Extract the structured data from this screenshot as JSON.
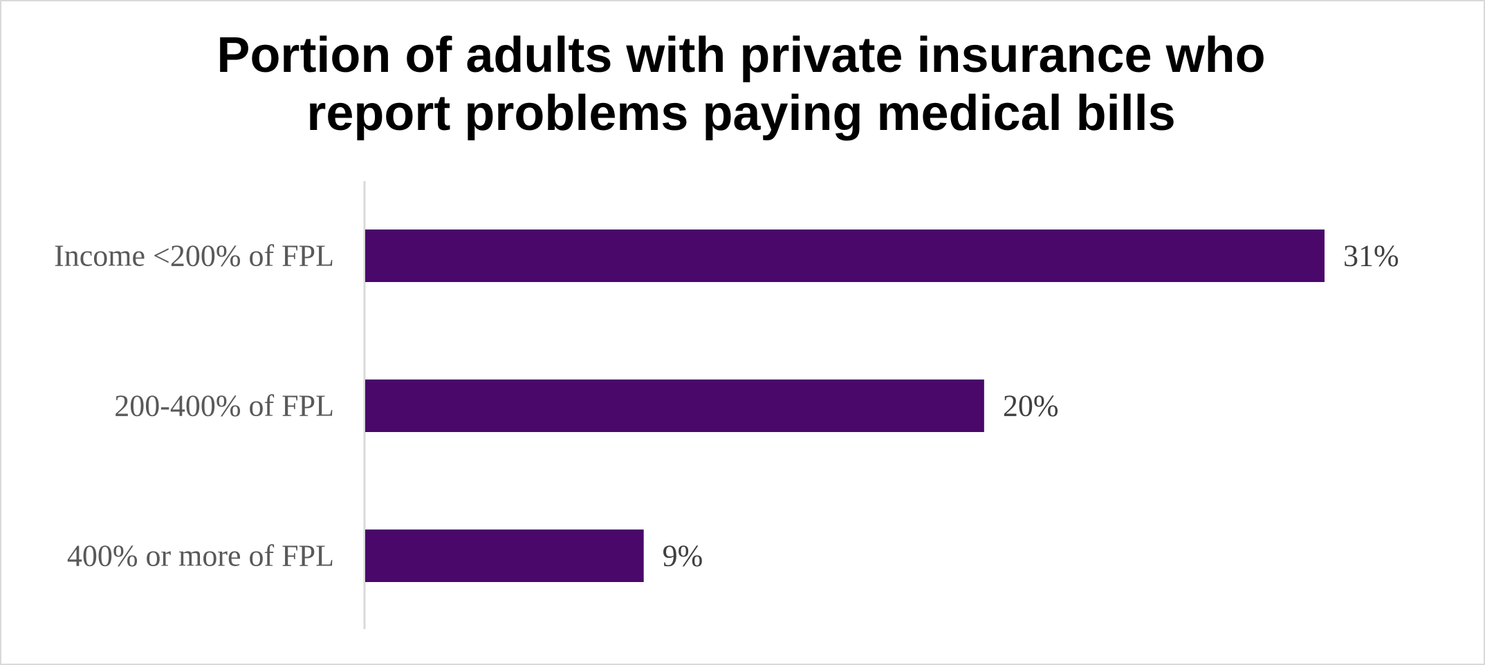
{
  "chart_data": {
    "type": "bar",
    "orientation": "horizontal",
    "title": [
      "Portion of adults with private insurance who",
      "report problems paying medical bills"
    ],
    "categories": [
      "Income <200% of FPL",
      "200-400% of FPL",
      "400% or more of FPL"
    ],
    "values": [
      31,
      20,
      9
    ],
    "value_labels": [
      "31%",
      "20%",
      "9%"
    ],
    "unit": "%",
    "xlim": [
      0,
      35
    ],
    "grid": false,
    "legend": "none",
    "bar_color": "#4a086b",
    "axis_color": "#d9d9d9"
  }
}
